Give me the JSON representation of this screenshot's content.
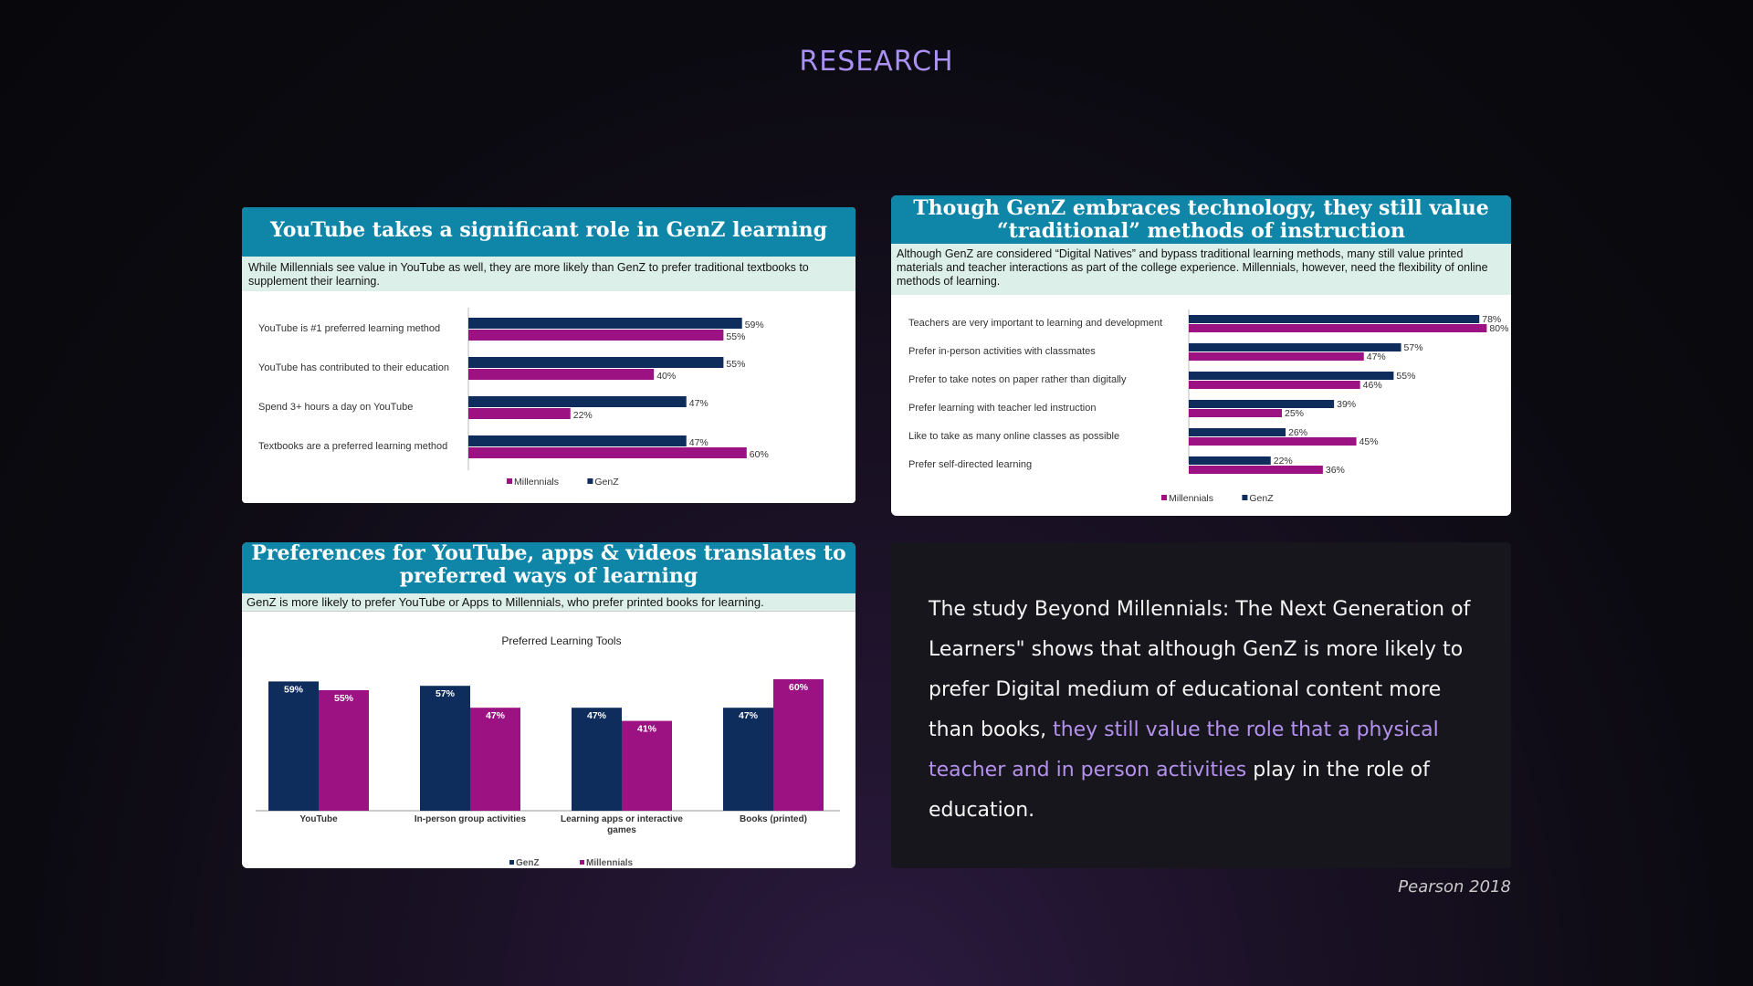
{
  "page": {
    "heading": "RESEARCH"
  },
  "colors": {
    "genz": "#0e2d5c",
    "millennials": "#9c1283",
    "header_blue": "#0f86a8",
    "highlight": "#b491ee"
  },
  "card1": {
    "title": "YouTube takes a significant role in GenZ learning",
    "subtitle": "While Millennials see value in YouTube as well, they are more likely than GenZ to prefer traditional textbooks to supplement their learning.",
    "chart_data": {
      "type": "bar",
      "orientation": "horizontal",
      "categories": [
        "YouTube is #1 preferred learning method",
        "YouTube has contributed to their education",
        "Spend 3+ hours a day on YouTube",
        "Textbooks are a preferred learning method"
      ],
      "series": [
        {
          "name": "GenZ",
          "values": [
            59,
            55,
            47,
            47
          ],
          "labels": [
            "59%",
            "55%",
            "47%",
            "47%"
          ]
        },
        {
          "name": "Millennials",
          "values": [
            55,
            40,
            22,
            60
          ],
          "labels": [
            "55%",
            "40%",
            "22%",
            "60%"
          ]
        }
      ],
      "legend": [
        "Millennials",
        "GenZ"
      ],
      "legend_position": "bottom",
      "xlim": [
        0,
        100
      ]
    }
  },
  "card2": {
    "title": "Though GenZ embraces technology, they still value “traditional” methods of instruction",
    "subtitle": "Although GenZ are considered “Digital Natives” and bypass traditional learning methods, many still value printed materials and teacher interactions as part of the college experience. Millennials, however, need the flexibility of online methods of learning.",
    "chart_data": {
      "type": "bar",
      "orientation": "horizontal",
      "categories": [
        "Teachers are very important to learning and development",
        "Prefer in-person activities with classmates",
        "Prefer to take notes on paper rather than digitally",
        "Prefer learning with teacher led instruction",
        "Like to take as many online classes as possible",
        "Prefer self-directed learning"
      ],
      "series": [
        {
          "name": "GenZ",
          "values": [
            78,
            57,
            55,
            39,
            26,
            22
          ],
          "labels": [
            "78%",
            "57%",
            "55%",
            "39%",
            "26%",
            "22%"
          ]
        },
        {
          "name": "Millennials",
          "values": [
            80,
            47,
            46,
            25,
            45,
            36
          ],
          "labels": [
            "80%",
            "47%",
            "46%",
            "25%",
            "45%",
            "36%"
          ]
        }
      ],
      "legend": [
        "Millennials",
        "GenZ"
      ],
      "legend_position": "bottom",
      "xlim": [
        0,
        100
      ]
    }
  },
  "card3": {
    "title": "Preferences for YouTube, apps & videos translates to preferred ways of learning",
    "subtitle": "GenZ is more likely to prefer YouTube or Apps to Millennials, who prefer printed books for learning.",
    "chart_data": {
      "type": "bar",
      "orientation": "vertical",
      "title": "Preferred Learning Tools",
      "categories": [
        "YouTube",
        "In-person group activities",
        "Learning apps or interactive games",
        "Books (printed)"
      ],
      "series": [
        {
          "name": "GenZ",
          "values": [
            59,
            57,
            47,
            47
          ],
          "labels": [
            "59%",
            "57%",
            "47%",
            "47%"
          ]
        },
        {
          "name": "Millennials",
          "values": [
            55,
            47,
            41,
            60
          ],
          "labels": [
            "55%",
            "47%",
            "41%",
            "60%"
          ]
        }
      ],
      "legend": [
        "GenZ",
        "Millennials"
      ],
      "legend_position": "bottom",
      "ylim": [
        0,
        100
      ]
    }
  },
  "text_panel": {
    "part1": "The study Beyond Millennials: The Next Generation of Learners\" shows that although GenZ is more likely to prefer Digital medium of educational content more than books, ",
    "highlight": "they still value the role that a physical teacher and in person activities",
    "part2": " play in the role of education."
  },
  "citation": "Pearson 2018"
}
